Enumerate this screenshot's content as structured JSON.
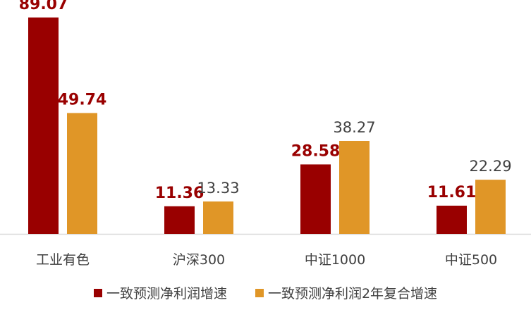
{
  "chart_data": {
    "type": "bar",
    "title": "",
    "xlabel": "",
    "ylabel": "",
    "ylim": [
      0,
      95
    ],
    "grid": false,
    "legend_position": "bottom",
    "categories": [
      "工业有色",
      "沪深300",
      "中证1000",
      "中证500"
    ],
    "series": [
      {
        "name": "一致预测净利润增速",
        "color": "#990000",
        "label_color": "#990000",
        "label_bold": true,
        "values": [
          89.07,
          11.36,
          28.58,
          11.61
        ],
        "labels": [
          "89.07",
          "11.36",
          "28.58",
          "11.61"
        ]
      },
      {
        "name": "一致预测净利润2年复合增速",
        "color": "#E09627",
        "label_colors": [
          "#990000",
          "#404040",
          "#404040",
          "#404040"
        ],
        "label_bold_flags": [
          true,
          false,
          false,
          false
        ],
        "values": [
          49.74,
          13.33,
          38.27,
          22.29
        ],
        "labels": [
          "49.74",
          "13.33",
          "38.27",
          "22.29"
        ]
      }
    ]
  }
}
